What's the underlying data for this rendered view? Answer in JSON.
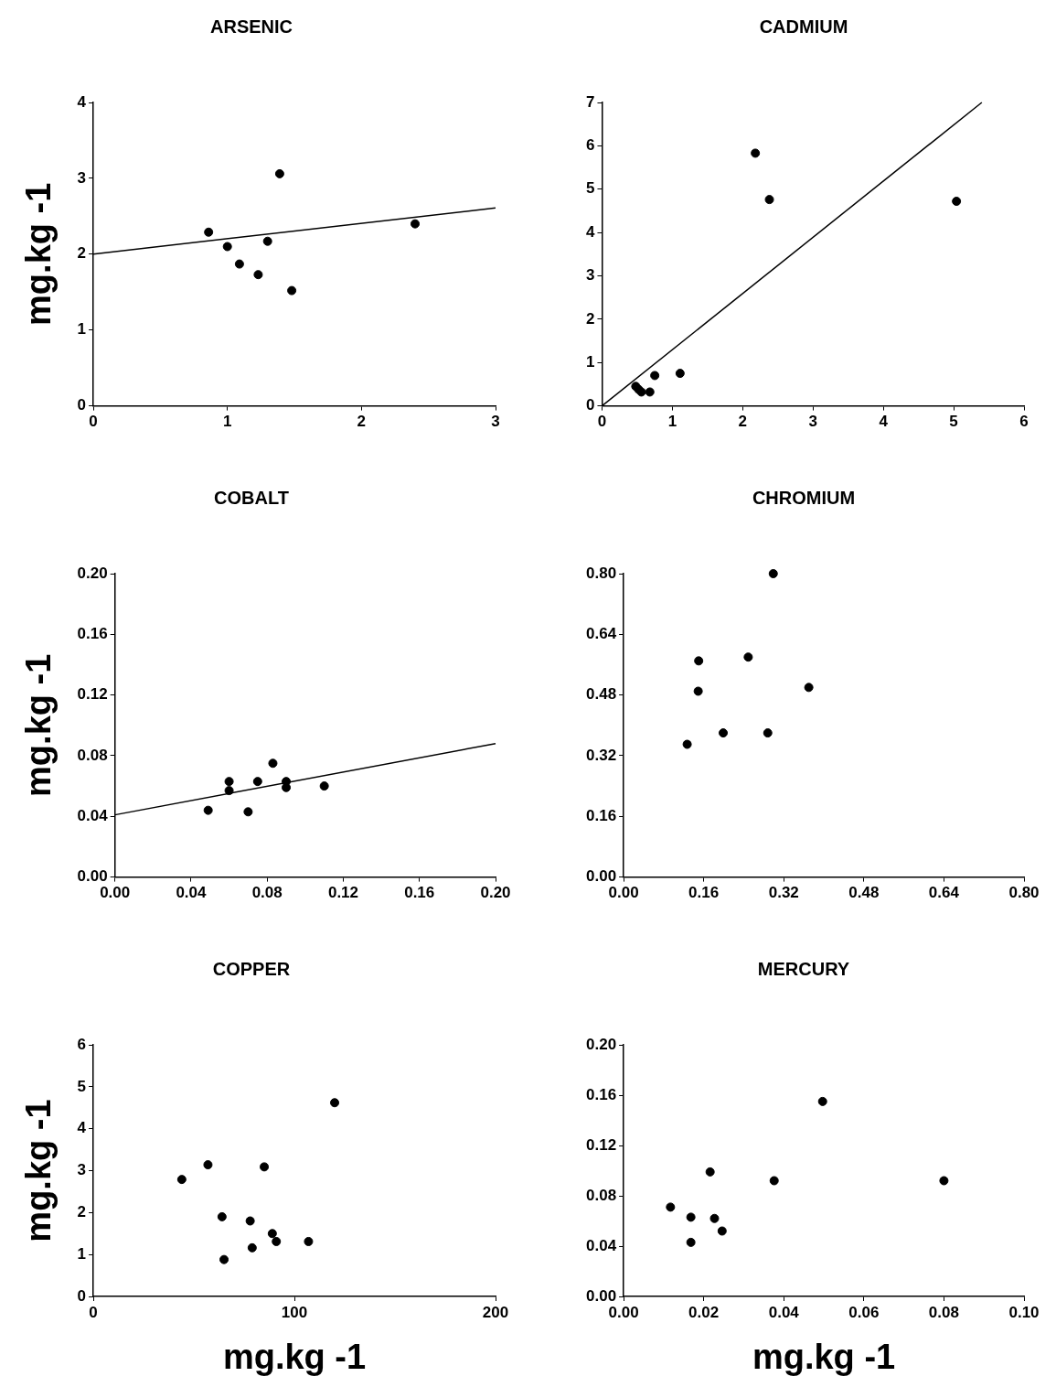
{
  "chart_data": [
    {
      "type": "scatter",
      "title": "ARSENIC",
      "ylabel": "mg.kg -1",
      "xlim": [
        0,
        3
      ],
      "ylim": [
        0,
        4
      ],
      "xticks": [
        0,
        1,
        2,
        3
      ],
      "yticks": [
        0,
        1,
        2,
        3,
        4
      ],
      "grid": false,
      "legend": false,
      "series": [
        {
          "type": "scatter",
          "color": "#000000",
          "marker": "circle",
          "x": [
            0.86,
            1.0,
            1.09,
            1.23,
            1.3,
            1.39,
            1.48,
            2.4
          ],
          "values": [
            2.29,
            2.1,
            1.87,
            1.73,
            2.17,
            3.06,
            1.52,
            2.4
          ]
        },
        {
          "type": "line",
          "color": "#000000",
          "marker": "none",
          "line_style": "solid",
          "x": [
            0,
            3
          ],
          "values": [
            2.0,
            2.61
          ]
        }
      ]
    },
    {
      "type": "scatter",
      "title": "CADMIUM",
      "xlim": [
        0,
        6
      ],
      "ylim": [
        0,
        7
      ],
      "xticks": [
        0,
        1,
        2,
        3,
        4,
        5,
        6
      ],
      "yticks": [
        0,
        1,
        2,
        3,
        4,
        5,
        6,
        7
      ],
      "grid": false,
      "legend": false,
      "series": [
        {
          "type": "scatter",
          "color": "#000000",
          "marker": "circle",
          "x": [
            0.48,
            0.52,
            0.56,
            0.68,
            0.75,
            1.11,
            2.18,
            2.38,
            5.04
          ],
          "values": [
            0.45,
            0.38,
            0.32,
            0.32,
            0.7,
            0.75,
            5.83,
            4.76,
            4.72
          ]
        },
        {
          "type": "line",
          "color": "#000000",
          "marker": "none",
          "line_style": "solid",
          "x": [
            0,
            5.4
          ],
          "values": [
            0,
            7.0
          ]
        }
      ]
    },
    {
      "type": "scatter",
      "title": "COBALT",
      "ylabel": "mg.kg -1",
      "xlim": [
        0,
        0.2
      ],
      "ylim": [
        0,
        0.2
      ],
      "xticks": [
        {
          "value": 0,
          "label": "0.00"
        },
        0.04,
        0.08,
        0.12,
        0.16,
        {
          "value": 0.2,
          "label": "0.20"
        }
      ],
      "yticks": [
        {
          "value": 0,
          "label": "0.00"
        },
        0.04,
        0.08,
        0.12,
        0.16,
        {
          "value": 0.2,
          "label": "0.20"
        }
      ],
      "grid": false,
      "legend": false,
      "series": [
        {
          "type": "scatter",
          "color": "#000000",
          "marker": "circle",
          "x": [
            0.049,
            0.06,
            0.06,
            0.07,
            0.075,
            0.083,
            0.09,
            0.09,
            0.11
          ],
          "values": [
            0.044,
            0.063,
            0.057,
            0.043,
            0.063,
            0.075,
            0.063,
            0.059,
            0.06
          ]
        },
        {
          "type": "line",
          "color": "#000000",
          "marker": "none",
          "line_style": "solid",
          "x": [
            0,
            0.2
          ],
          "values": [
            0.041,
            0.088
          ]
        }
      ]
    },
    {
      "type": "scatter",
      "title": "CHROMIUM",
      "xlim": [
        0,
        0.8
      ],
      "ylim": [
        0,
        0.8
      ],
      "xticks": [
        {
          "value": 0,
          "label": "0.00"
        },
        0.16,
        0.32,
        0.48,
        0.64,
        {
          "value": 0.8,
          "label": "0.80"
        }
      ],
      "yticks": [
        {
          "value": 0,
          "label": "0.00"
        },
        0.16,
        0.32,
        0.48,
        0.64,
        {
          "value": 0.8,
          "label": "0.80"
        }
      ],
      "grid": false,
      "legend": false,
      "series": [
        {
          "type": "scatter",
          "color": "#000000",
          "marker": "circle",
          "x": [
            0.127,
            0.149,
            0.15,
            0.199,
            0.249,
            0.288,
            0.299,
            0.37
          ],
          "values": [
            0.35,
            0.49,
            0.57,
            0.38,
            0.58,
            0.38,
            0.8,
            0.5
          ]
        }
      ]
    },
    {
      "type": "scatter",
      "title": "COPPER",
      "xlabel": "mg.kg -1",
      "ylabel": "mg.kg -1",
      "xlim": [
        0,
        200
      ],
      "ylim": [
        0,
        6
      ],
      "xticks": [
        0,
        100,
        200
      ],
      "yticks": [
        0,
        1,
        2,
        3,
        4,
        5,
        6
      ],
      "grid": false,
      "legend": false,
      "series": [
        {
          "type": "scatter",
          "color": "#000000",
          "marker": "circle",
          "x": [
            44,
            57,
            64,
            65,
            78,
            79,
            85,
            89,
            91,
            107,
            120
          ],
          "values": [
            2.79,
            3.14,
            1.9,
            0.88,
            1.8,
            1.16,
            3.09,
            1.5,
            1.31,
            1.31,
            4.62
          ]
        }
      ]
    },
    {
      "type": "scatter",
      "title": "MERCURY",
      "xlabel": "mg.kg -1",
      "xlim": [
        0,
        0.1
      ],
      "ylim": [
        0,
        0.2
      ],
      "xticks": [
        {
          "value": 0,
          "label": "0.00"
        },
        0.02,
        0.04,
        0.06,
        0.08,
        {
          "value": 0.1,
          "label": "0.10"
        }
      ],
      "yticks": [
        {
          "value": 0,
          "label": "0.00"
        },
        0.04,
        0.08,
        0.12,
        0.16,
        {
          "value": 0.2,
          "label": "0.20"
        }
      ],
      "grid": false,
      "legend": false,
      "series": [
        {
          "type": "scatter",
          "color": "#000000",
          "marker": "circle",
          "x": [
            0.0117,
            0.0168,
            0.0168,
            0.0216,
            0.0227,
            0.0246,
            0.0376,
            0.0497,
            0.08
          ],
          "values": [
            0.071,
            0.063,
            0.043,
            0.099,
            0.062,
            0.052,
            0.092,
            0.155,
            0.092
          ]
        }
      ]
    }
  ]
}
